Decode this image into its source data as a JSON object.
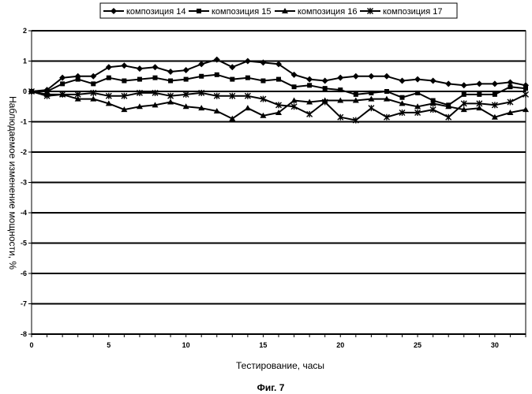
{
  "chart_data": {
    "type": "line",
    "title": "",
    "xlabel": "Тестирование, часы",
    "ylabel": "Наблюдаемое изменение мощности, %",
    "caption": "Фиг. 7",
    "xlim": [
      0,
      32
    ],
    "ylim": [
      -8,
      2
    ],
    "x_ticks": [
      0,
      5,
      10,
      15,
      20,
      25,
      30
    ],
    "y_ticks": [
      2,
      1,
      0,
      -1,
      -2,
      -3,
      -4,
      -5,
      -6,
      -7,
      -8
    ],
    "grid": "horizontal",
    "legend_position": "top",
    "x": [
      0,
      1,
      2,
      3,
      4,
      5,
      6,
      7,
      8,
      9,
      10,
      11,
      12,
      13,
      14,
      15,
      16,
      17,
      18,
      19,
      20,
      21,
      22,
      23,
      24,
      25,
      26,
      27,
      28,
      29,
      30,
      31,
      32
    ],
    "series": [
      {
        "name": "композиция 14",
        "marker": "diamond",
        "values": [
          0,
          0.05,
          0.45,
          0.5,
          0.5,
          0.8,
          0.85,
          0.75,
          0.8,
          0.65,
          0.7,
          0.9,
          1.05,
          0.8,
          1.0,
          0.95,
          0.9,
          0.55,
          0.4,
          0.35,
          0.45,
          0.5,
          0.5,
          0.5,
          0.35,
          0.4,
          0.35,
          0.25,
          0.2,
          0.25,
          0.25,
          0.3,
          0.2
        ]
      },
      {
        "name": "композиция 15",
        "marker": "square",
        "values": [
          0,
          0,
          0.25,
          0.4,
          0.25,
          0.45,
          0.35,
          0.4,
          0.45,
          0.35,
          0.4,
          0.5,
          0.55,
          0.4,
          0.45,
          0.35,
          0.4,
          0.15,
          0.2,
          0.1,
          0.05,
          -0.1,
          -0.05,
          0,
          -0.2,
          -0.05,
          -0.3,
          -0.45,
          -0.1,
          -0.1,
          -0.1,
          0.15,
          0.1
        ]
      },
      {
        "name": "композиция 16",
        "marker": "triangle",
        "values": [
          0,
          -0.1,
          -0.1,
          -0.25,
          -0.25,
          -0.4,
          -0.6,
          -0.5,
          -0.45,
          -0.35,
          -0.5,
          -0.55,
          -0.65,
          -0.9,
          -0.55,
          -0.8,
          -0.7,
          -0.3,
          -0.35,
          -0.3,
          -0.3,
          -0.3,
          -0.25,
          -0.25,
          -0.4,
          -0.5,
          -0.4,
          -0.5,
          -0.6,
          -0.55,
          -0.85,
          -0.7,
          -0.6
        ]
      },
      {
        "name": "композиция 17",
        "marker": "asterisk",
        "values": [
          0,
          -0.15,
          -0.1,
          -0.1,
          -0.05,
          -0.15,
          -0.15,
          -0.05,
          -0.05,
          -0.15,
          -0.1,
          -0.05,
          -0.15,
          -0.15,
          -0.15,
          -0.25,
          -0.45,
          -0.5,
          -0.75,
          -0.35,
          -0.85,
          -0.95,
          -0.55,
          -0.85,
          -0.7,
          -0.7,
          -0.6,
          -0.85,
          -0.4,
          -0.4,
          -0.45,
          -0.35,
          -0.1
        ]
      }
    ]
  }
}
